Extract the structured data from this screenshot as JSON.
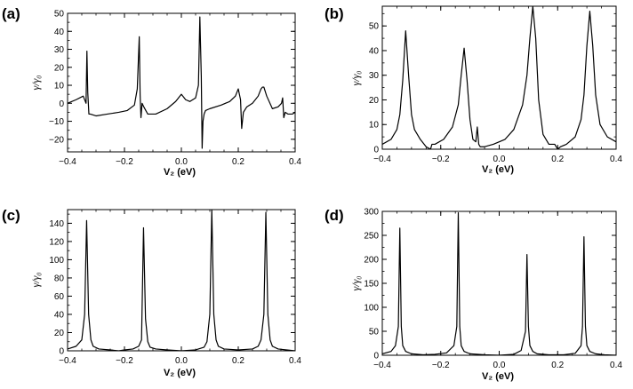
{
  "chart_data": [
    {
      "type": "line",
      "panel_label": "(a)",
      "xlabel": "V₂ (eV)",
      "ylabel": "γ/γ₀",
      "xlim": [
        -0.4,
        0.4
      ],
      "ylim": [
        -27,
        50
      ],
      "xticks": [
        -0.4,
        -0.2,
        0.0,
        0.2,
        0.4
      ],
      "xtick_labels": [
        "−0.4",
        "−0.2",
        "0.0",
        "0.2",
        "0.4"
      ],
      "yticks": [
        -20,
        -10,
        0,
        10,
        20,
        30,
        40,
        50
      ],
      "ytick_labels": [
        "−20",
        "−10",
        "0",
        "10",
        "20",
        "30",
        "40",
        "50"
      ],
      "series": [
        {
          "name": "γ/γ₀",
          "x": [
            -0.4,
            -0.37,
            -0.345,
            -0.335,
            -0.332,
            -0.329,
            -0.325,
            -0.32,
            -0.3,
            -0.26,
            -0.22,
            -0.19,
            -0.165,
            -0.155,
            -0.148,
            -0.145,
            -0.142,
            -0.138,
            -0.132,
            -0.125,
            -0.118,
            -0.11,
            -0.09,
            -0.05,
            -0.02,
            0.0,
            0.015,
            0.03,
            0.05,
            0.06,
            0.065,
            0.07,
            0.073,
            0.076,
            0.08,
            0.085,
            0.1,
            0.14,
            0.17,
            0.19,
            0.2,
            0.208,
            0.212,
            0.218,
            0.23,
            0.25,
            0.27,
            0.28,
            0.285,
            0.29,
            0.3,
            0.32,
            0.34,
            0.352,
            0.356,
            0.36,
            0.365,
            0.375,
            0.39,
            0.4
          ],
          "y": [
            0,
            2,
            4,
            0,
            29,
            6,
            -6,
            -6,
            -7,
            -6,
            -5,
            -4,
            -1,
            8,
            37,
            5,
            -8,
            0,
            -2,
            -4,
            -6,
            -6,
            -6,
            -3,
            1,
            5,
            2,
            1,
            3,
            10,
            48,
            15,
            -25,
            -10,
            -6,
            -4,
            -3,
            -1,
            1,
            4,
            8,
            2,
            -14,
            -5,
            -2,
            0,
            4,
            8,
            9,
            9,
            4,
            -3,
            -2,
            0,
            3,
            -8,
            -5,
            -6,
            -6,
            -5
          ]
        }
      ]
    },
    {
      "type": "line",
      "panel_label": "(b)",
      "xlabel": "V₂ (eV)",
      "ylabel": "γ/γ₀",
      "xlim": [
        -0.4,
        0.4
      ],
      "ylim": [
        0,
        58
      ],
      "xticks": [
        -0.4,
        -0.2,
        0.0,
        0.2,
        0.4
      ],
      "xtick_labels": [
        "−0.4",
        "−0.2",
        "0.0",
        "0.2",
        "0.4"
      ],
      "yticks": [
        0,
        10,
        20,
        30,
        40,
        50
      ],
      "ytick_labels": [
        "0",
        "10",
        "20",
        "30",
        "40",
        "50"
      ],
      "series": [
        {
          "name": "γ/γ₀",
          "x": [
            -0.4,
            -0.37,
            -0.35,
            -0.34,
            -0.33,
            -0.32,
            -0.31,
            -0.3,
            -0.29,
            -0.27,
            -0.25,
            -0.235,
            -0.23,
            -0.22,
            -0.19,
            -0.16,
            -0.14,
            -0.13,
            -0.12,
            -0.11,
            -0.1,
            -0.09,
            -0.08,
            -0.075,
            -0.07,
            -0.065,
            -0.05,
            -0.02,
            0.02,
            0.05,
            0.08,
            0.095,
            0.105,
            0.115,
            0.125,
            0.135,
            0.15,
            0.17,
            0.19,
            0.2,
            0.21,
            0.23,
            0.26,
            0.28,
            0.29,
            0.3,
            0.31,
            0.32,
            0.33,
            0.345,
            0.37,
            0.4
          ],
          "y": [
            2,
            4,
            8,
            14,
            28,
            48,
            30,
            14,
            8,
            4,
            1,
            0,
            2,
            2,
            4,
            9,
            18,
            30,
            41,
            28,
            12,
            4,
            3,
            9,
            2,
            1,
            1,
            2,
            4,
            8,
            18,
            30,
            45,
            58,
            45,
            20,
            6,
            2,
            2,
            0,
            1,
            2,
            5,
            12,
            22,
            42,
            56,
            42,
            22,
            10,
            5,
            3
          ]
        }
      ]
    },
    {
      "type": "line",
      "panel_label": "(c)",
      "xlabel": "V₂ (eV)",
      "ylabel": "γ/γ₀",
      "xlim": [
        -0.4,
        0.4
      ],
      "ylim": [
        0,
        155
      ],
      "xticks": [
        -0.4,
        -0.2,
        0.0,
        0.2,
        0.4
      ],
      "xtick_labels": [
        "−0.4",
        "−0.2",
        "0.0",
        "0.2",
        "0.4"
      ],
      "yticks": [
        0,
        20,
        40,
        60,
        80,
        100,
        120,
        140
      ],
      "ytick_labels": [
        "0",
        "20",
        "40",
        "60",
        "80",
        "100",
        "120",
        "140"
      ],
      "series": [
        {
          "name": "γ/γ₀",
          "x": [
            -0.4,
            -0.37,
            -0.35,
            -0.34,
            -0.333,
            -0.326,
            -0.318,
            -0.31,
            -0.29,
            -0.25,
            -0.22,
            -0.2,
            -0.17,
            -0.15,
            -0.14,
            -0.133,
            -0.126,
            -0.118,
            -0.11,
            -0.09,
            -0.05,
            0.0,
            0.05,
            0.08,
            0.09,
            0.1,
            0.107,
            0.114,
            0.122,
            0.13,
            0.15,
            0.2,
            0.25,
            0.27,
            0.28,
            0.29,
            0.297,
            0.304,
            0.312,
            0.32,
            0.34,
            0.37,
            0.4
          ],
          "y": [
            2,
            5,
            12,
            40,
            143,
            40,
            12,
            5,
            2,
            1,
            0,
            1,
            2,
            5,
            12,
            135,
            35,
            10,
            4,
            2,
            1,
            0,
            1,
            4,
            10,
            40,
            155,
            40,
            12,
            5,
            2,
            1,
            2,
            5,
            12,
            40,
            152,
            40,
            12,
            5,
            2,
            1,
            0
          ]
        }
      ]
    },
    {
      "type": "line",
      "panel_label": "(d)",
      "xlabel": "V₂ (eV)",
      "ylabel": "γ/γ₀",
      "xlim": [
        -0.4,
        0.4
      ],
      "ylim": [
        0,
        300
      ],
      "xticks": [
        -0.4,
        -0.2,
        0.0,
        0.2,
        0.4
      ],
      "xtick_labels": [
        "−0.4",
        "−0.2",
        "0.0",
        "0.2",
        "0.4"
      ],
      "yticks": [
        0,
        50,
        100,
        150,
        200,
        250,
        300
      ],
      "ytick_labels": [
        "0",
        "50",
        "100",
        "150",
        "200",
        "250",
        "300"
      ],
      "series": [
        {
          "name": "γ/γ₀",
          "x": [
            -0.4,
            -0.37,
            -0.355,
            -0.345,
            -0.34,
            -0.335,
            -0.33,
            -0.32,
            -0.3,
            -0.26,
            -0.22,
            -0.18,
            -0.155,
            -0.145,
            -0.14,
            -0.135,
            -0.13,
            -0.12,
            -0.1,
            -0.05,
            0.0,
            0.05,
            0.075,
            0.09,
            0.095,
            0.1,
            0.105,
            0.115,
            0.13,
            0.17,
            0.22,
            0.26,
            0.28,
            0.285,
            0.29,
            0.295,
            0.3,
            0.31,
            0.33,
            0.36,
            0.4
          ],
          "y": [
            3,
            8,
            20,
            60,
            265,
            60,
            20,
            8,
            3,
            1,
            2,
            5,
            20,
            60,
            297,
            60,
            20,
            8,
            3,
            1,
            0,
            2,
            10,
            50,
            210,
            60,
            20,
            8,
            3,
            1,
            1,
            4,
            20,
            60,
            247,
            60,
            20,
            8,
            3,
            1,
            0
          ]
        }
      ]
    }
  ]
}
